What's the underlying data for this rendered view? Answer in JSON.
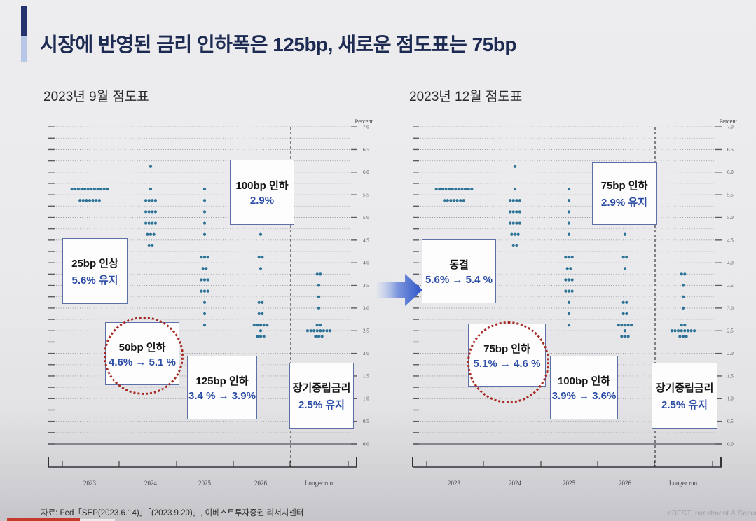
{
  "slide": {
    "title": "시장에 반영된 금리 인하폭은 125bp, 새로운 점도표는 75bp",
    "source": "자료: Fed「SEP(2023.6.14)」「(2023.9.20)」, 이베스트투자증권 리서치센터",
    "watermark": "eBEST Investment & Securities"
  },
  "colors": {
    "dot": "#2c7296",
    "accent_navy": "#24356d",
    "accent_light": "#b9c7e6",
    "title_navy": "#1d2a52",
    "annotation_blue": "#2b4da6",
    "annotation_border": "#5c6fa6",
    "circle_red": "#a82a24",
    "arrow_blue": "#2d52c8"
  },
  "chart_data": [
    {
      "type": "scatter",
      "title": "2023년 9월 점도표",
      "ylabel": "Percent",
      "ylim": [
        0.0,
        7.0
      ],
      "yticks": [
        "7.0",
        "6.5",
        "6.0",
        "5.5",
        "5.0",
        "4.5",
        "4.0",
        "3.5",
        "3.0",
        "2.5",
        "2.0",
        "1.5",
        "1.0",
        "0.5",
        "0.0"
      ],
      "gridline_step": 0.25,
      "grid": true,
      "categories": [
        "2023",
        "2024",
        "2025",
        "2026",
        "Longer run"
      ],
      "series": [
        {
          "name": "2023",
          "dots": [
            {
              "v": 5.625,
              "n": 12
            },
            {
              "v": 5.375,
              "n": 7
            }
          ]
        },
        {
          "name": "2024",
          "dots": [
            {
              "v": 6.125,
              "n": 1
            },
            {
              "v": 5.625,
              "n": 1
            },
            {
              "v": 5.375,
              "n": 4
            },
            {
              "v": 5.125,
              "n": 4
            },
            {
              "v": 4.875,
              "n": 4
            },
            {
              "v": 4.625,
              "n": 3
            },
            {
              "v": 4.375,
              "n": 2
            }
          ]
        },
        {
          "name": "2025",
          "dots": [
            {
              "v": 5.625,
              "n": 1
            },
            {
              "v": 5.375,
              "n": 1
            },
            {
              "v": 5.125,
              "n": 1
            },
            {
              "v": 4.875,
              "n": 1
            },
            {
              "v": 4.625,
              "n": 1
            },
            {
              "v": 4.125,
              "n": 3
            },
            {
              "v": 3.875,
              "n": 2
            },
            {
              "v": 3.625,
              "n": 3
            },
            {
              "v": 3.375,
              "n": 3
            },
            {
              "v": 3.125,
              "n": 1
            },
            {
              "v": 2.875,
              "n": 1
            },
            {
              "v": 2.625,
              "n": 1
            }
          ]
        },
        {
          "name": "2026",
          "dots": [
            {
              "v": 4.875,
              "n": 2
            },
            {
              "v": 4.625,
              "n": 1
            },
            {
              "v": 4.125,
              "n": 2
            },
            {
              "v": 3.875,
              "n": 1
            },
            {
              "v": 3.125,
              "n": 2
            },
            {
              "v": 2.875,
              "n": 2
            },
            {
              "v": 2.625,
              "n": 5
            },
            {
              "v": 2.5,
              "n": 1
            },
            {
              "v": 2.375,
              "n": 3
            }
          ]
        },
        {
          "name": "Longer run",
          "dots": [
            {
              "v": 3.75,
              "n": 2
            },
            {
              "v": 3.5,
              "n": 1
            },
            {
              "v": 3.25,
              "n": 1
            },
            {
              "v": 3.0,
              "n": 1
            },
            {
              "v": 2.625,
              "n": 2
            },
            {
              "v": 2.5,
              "n": 8
            },
            {
              "v": 2.375,
              "n": 3
            }
          ]
        }
      ],
      "annotations": [
        {
          "label": "100bp 인하",
          "value": "2.9%",
          "circled": false
        },
        {
          "label": "25bp 인상",
          "value": "5.6% 유지",
          "circled": false
        },
        {
          "label": "50bp 인하",
          "value": "4.6% → 5.1 %",
          "circled": true
        },
        {
          "label": "125bp 인하",
          "value": "3.4 % → 3.9%",
          "circled": false
        },
        {
          "label": "장기중립금리",
          "value": "2.5% 유지",
          "circled": false
        }
      ]
    },
    {
      "type": "scatter",
      "title": "2023년 12월 점도표",
      "ylabel": "Percent",
      "ylim": [
        0.0,
        7.0
      ],
      "yticks": [
        "7.0",
        "6.5",
        "6.0",
        "5.5",
        "5.0",
        "4.5",
        "4.0",
        "3.5",
        "3.0",
        "2.5",
        "2.0",
        "1.5",
        "1.0",
        "0.5",
        "0.0"
      ],
      "gridline_step": 0.25,
      "grid": true,
      "categories": [
        "2023",
        "2024",
        "2025",
        "2026",
        "Longer run"
      ],
      "series": [
        {
          "name": "2023",
          "dots": [
            {
              "v": 5.625,
              "n": 12
            },
            {
              "v": 5.375,
              "n": 7
            }
          ]
        },
        {
          "name": "2024",
          "dots": [
            {
              "v": 6.125,
              "n": 1
            },
            {
              "v": 5.625,
              "n": 1
            },
            {
              "v": 5.375,
              "n": 4
            },
            {
              "v": 5.125,
              "n": 4
            },
            {
              "v": 4.875,
              "n": 4
            },
            {
              "v": 4.625,
              "n": 3
            },
            {
              "v": 4.375,
              "n": 2
            }
          ]
        },
        {
          "name": "2025",
          "dots": [
            {
              "v": 5.625,
              "n": 1
            },
            {
              "v": 5.375,
              "n": 1
            },
            {
              "v": 5.125,
              "n": 1
            },
            {
              "v": 4.875,
              "n": 1
            },
            {
              "v": 4.625,
              "n": 1
            },
            {
              "v": 4.125,
              "n": 3
            },
            {
              "v": 3.875,
              "n": 2
            },
            {
              "v": 3.625,
              "n": 3
            },
            {
              "v": 3.375,
              "n": 3
            },
            {
              "v": 3.125,
              "n": 1
            },
            {
              "v": 2.875,
              "n": 1
            },
            {
              "v": 2.625,
              "n": 1
            }
          ]
        },
        {
          "name": "2026",
          "dots": [
            {
              "v": 4.875,
              "n": 2
            },
            {
              "v": 4.625,
              "n": 1
            },
            {
              "v": 4.125,
              "n": 2
            },
            {
              "v": 3.875,
              "n": 1
            },
            {
              "v": 3.125,
              "n": 2
            },
            {
              "v": 2.875,
              "n": 2
            },
            {
              "v": 2.625,
              "n": 5
            },
            {
              "v": 2.5,
              "n": 1
            },
            {
              "v": 2.375,
              "n": 3
            }
          ]
        },
        {
          "name": "Longer run",
          "dots": [
            {
              "v": 3.75,
              "n": 2
            },
            {
              "v": 3.5,
              "n": 1
            },
            {
              "v": 3.25,
              "n": 1
            },
            {
              "v": 3.0,
              "n": 1
            },
            {
              "v": 2.625,
              "n": 2
            },
            {
              "v": 2.5,
              "n": 8
            },
            {
              "v": 2.375,
              "n": 3
            }
          ]
        }
      ],
      "annotations": [
        {
          "label": "75bp 인하",
          "value": "2.9% 유지",
          "circled": false
        },
        {
          "label": "동결",
          "value": "5.6% → 5.4 %",
          "circled": false
        },
        {
          "label": "75bp 인하",
          "value": "5.1% → 4.6 %",
          "circled": true
        },
        {
          "label": "100bp 인하",
          "value": "3.9% → 3.6%",
          "circled": false
        },
        {
          "label": "장기중립금리",
          "value": "2.5% 유지",
          "circled": false
        }
      ]
    }
  ]
}
